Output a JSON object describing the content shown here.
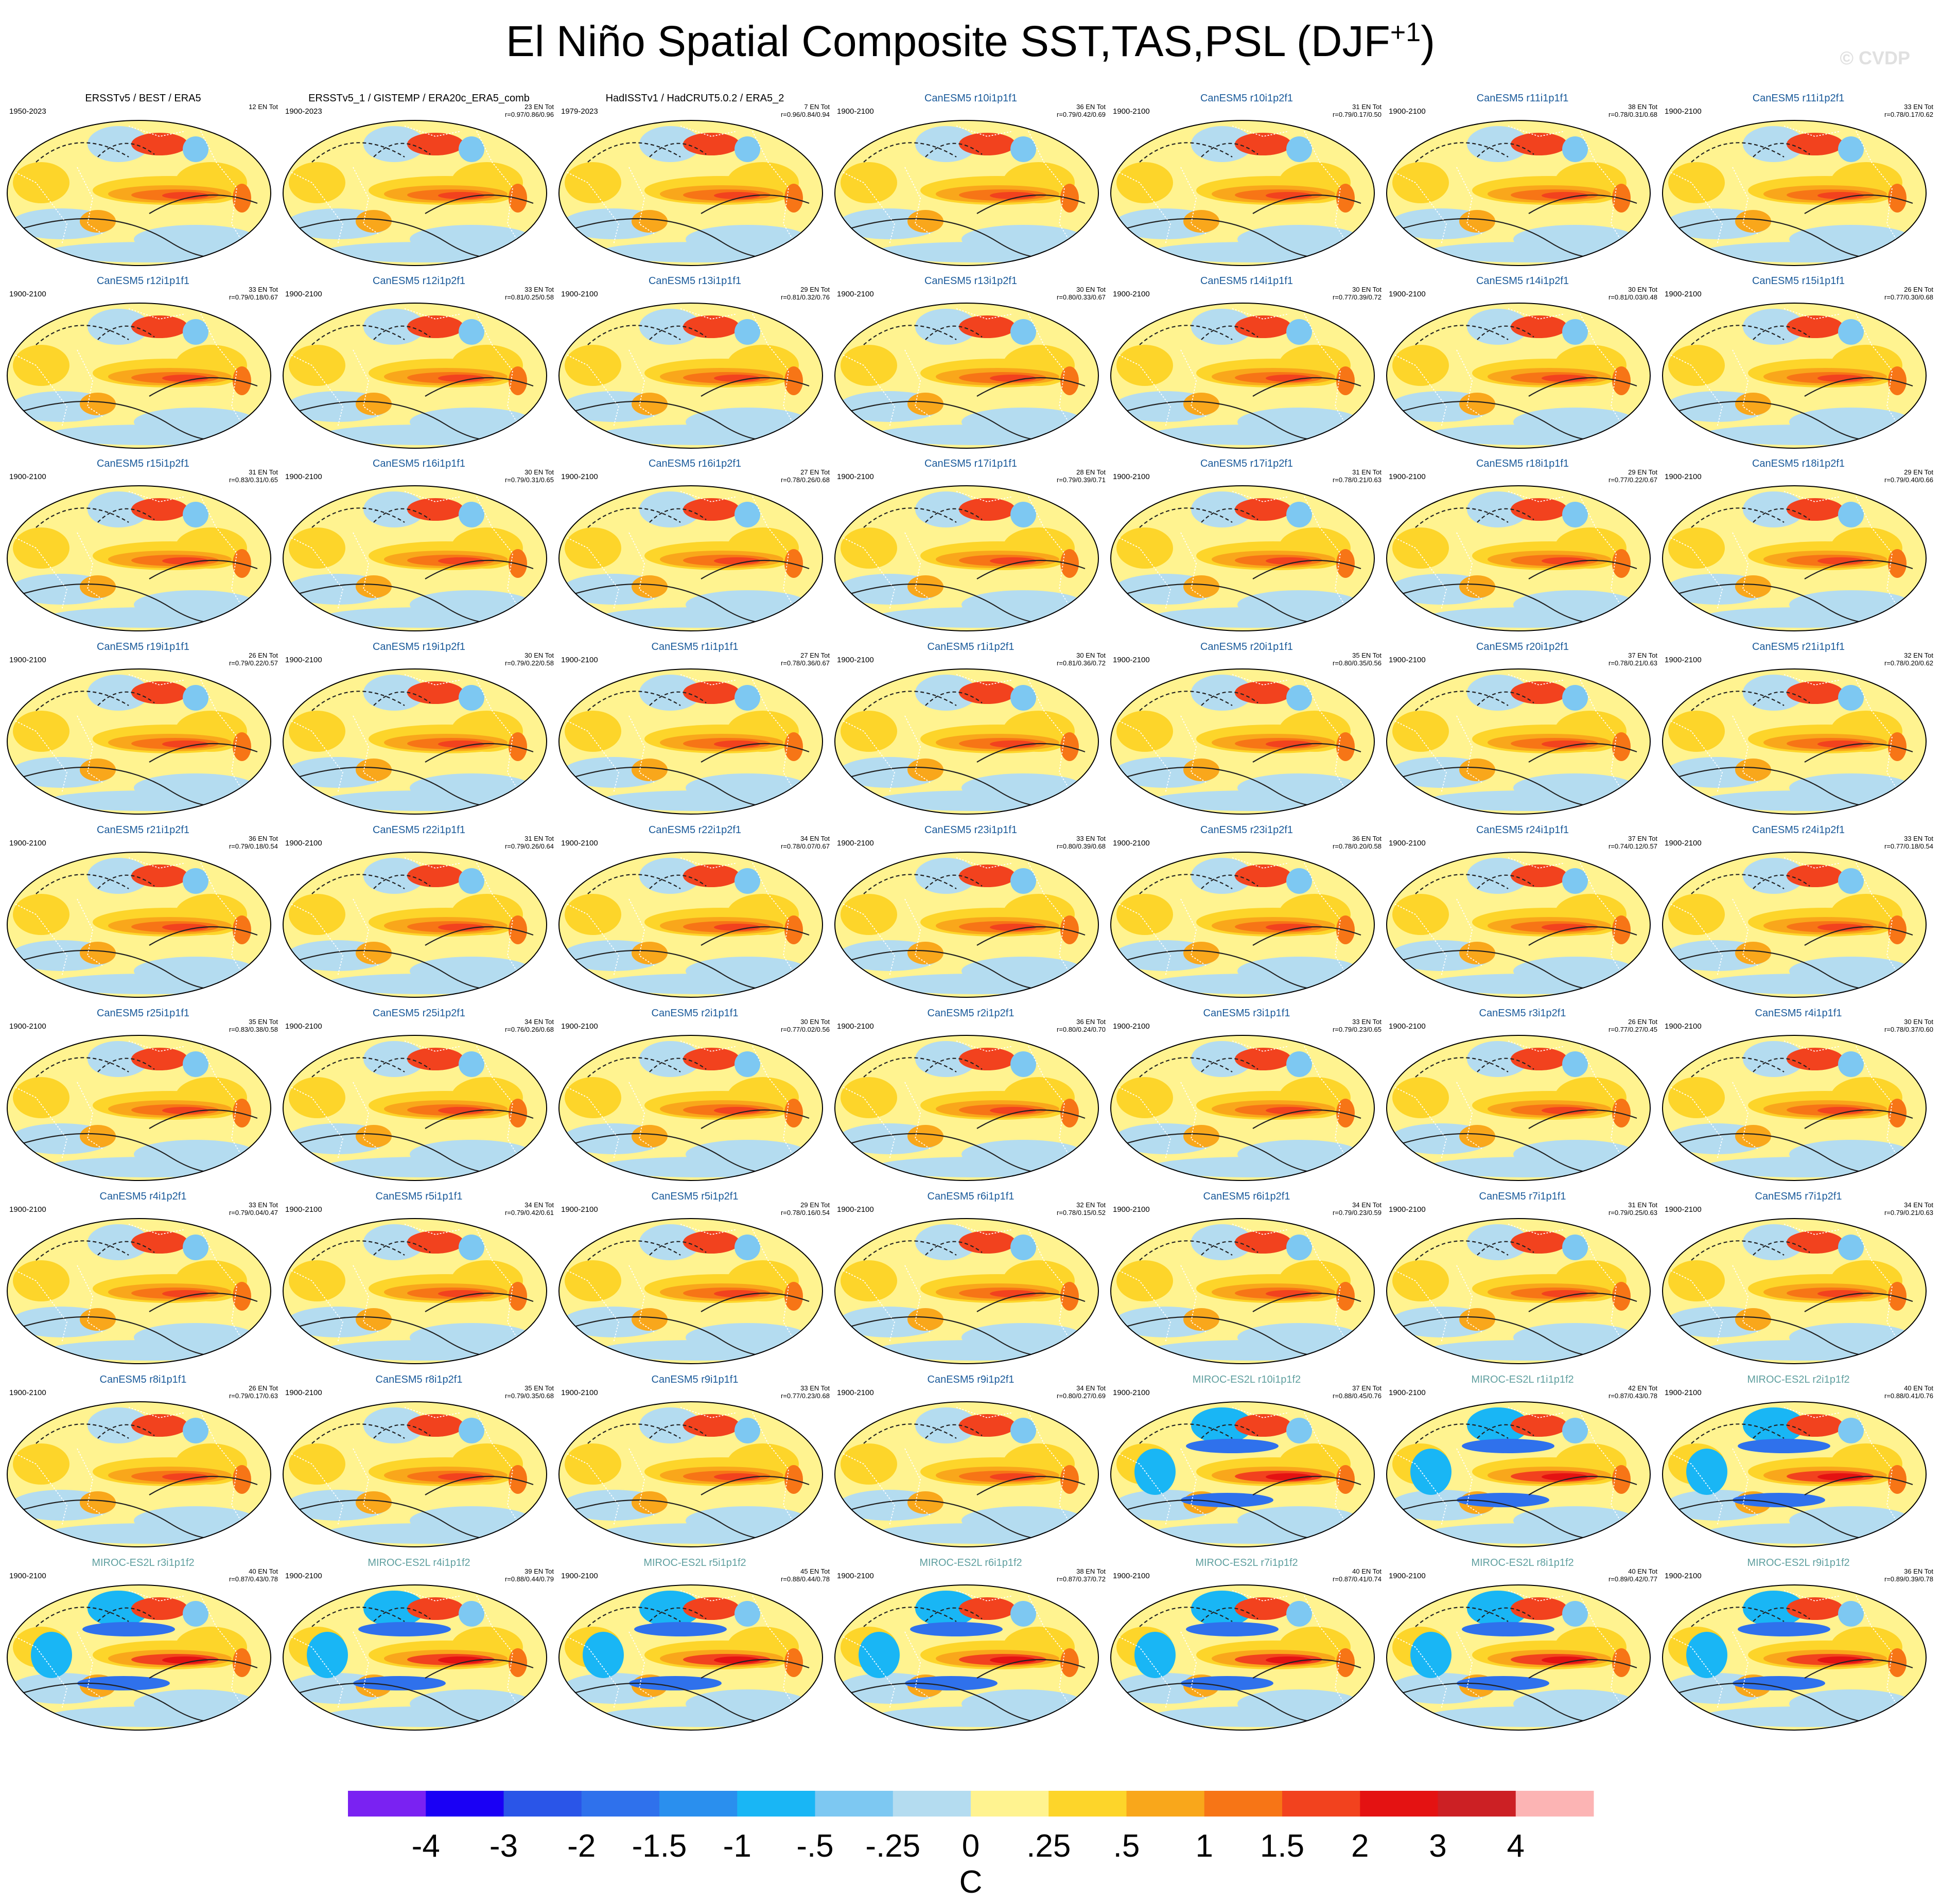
{
  "title": {
    "main": "El Niño Spatial Composite SST,TAS,PSL (DJF",
    "sup": "+1",
    "close": ")"
  },
  "watermark": "© CVDP",
  "chart_data": {
    "type": "heatmap",
    "title": "El Niño Spatial Composite SST,TAS,PSL (DJF+1)",
    "colorbar": {
      "unit": "C",
      "ticks": [
        "-4",
        "-3",
        "-2",
        "-1.5",
        "-1",
        "-.5",
        "-.25",
        "0",
        ".25",
        ".5",
        "1",
        "1.5",
        "2",
        "3",
        "4"
      ],
      "colors": [
        "#7a22f2",
        "#1a00f5",
        "#2a55e8",
        "#2f71ec",
        "#2a8fee",
        "#19b6f5",
        "#7dc8f2",
        "#b4dcf0",
        "#fff390",
        "#fdd52a",
        "#f9a71b",
        "#f77516",
        "#f2421e",
        "#e41212",
        "#cc2024",
        "#fcb4b4"
      ]
    },
    "panels": [
      {
        "title": "ERSSTv5 / BEST / ERA5",
        "period": "1950-2023",
        "ens": "12 EN Tot",
        "stats": "",
        "obs": true
      },
      {
        "title": "ERSSTv5_1 / GISTEMP / ERA20c_ERA5_comb",
        "period": "1900-2023",
        "ens": "23 EN Tot",
        "stats": "r=0.97/0.86/0.96",
        "obs": true
      },
      {
        "title": "HadISSTv1 / HadCRUT5.0.2 / ERA5_2",
        "period": "1979-2023",
        "ens": "7 EN Tot",
        "stats": "r=0.96/0.84/0.94",
        "obs": true
      },
      {
        "title": "CanESM5 r10i1p1f1",
        "period": "1900-2100",
        "ens": "36 EN Tot",
        "stats": "r=0.79/0.42/0.69"
      },
      {
        "title": "CanESM5 r10i1p2f1",
        "period": "1900-2100",
        "ens": "31 EN Tot",
        "stats": "r=0.79/0.17/0.50"
      },
      {
        "title": "CanESM5 r11i1p1f1",
        "period": "1900-2100",
        "ens": "38 EN Tot",
        "stats": "r=0.78/0.31/0.68"
      },
      {
        "title": "CanESM5 r11i1p2f1",
        "period": "1900-2100",
        "ens": "33 EN Tot",
        "stats": "r=0.78/0.17/0.62"
      },
      {
        "title": "CanESM5 r12i1p1f1",
        "period": "1900-2100",
        "ens": "33 EN Tot",
        "stats": "r=0.79/0.18/0.67"
      },
      {
        "title": "CanESM5 r12i1p2f1",
        "period": "1900-2100",
        "ens": "33 EN Tot",
        "stats": "r=0.81/0.25/0.58"
      },
      {
        "title": "CanESM5 r13i1p1f1",
        "period": "1900-2100",
        "ens": "29 EN Tot",
        "stats": "r=0.81/0.32/0.76"
      },
      {
        "title": "CanESM5 r13i1p2f1",
        "period": "1900-2100",
        "ens": "30 EN Tot",
        "stats": "r=0.80/0.33/0.67"
      },
      {
        "title": "CanESM5 r14i1p1f1",
        "period": "1900-2100",
        "ens": "30 EN Tot",
        "stats": "r=0.77/0.39/0.72"
      },
      {
        "title": "CanESM5 r14i1p2f1",
        "period": "1900-2100",
        "ens": "30 EN Tot",
        "stats": "r=0.81/0.03/0.48"
      },
      {
        "title": "CanESM5 r15i1p1f1",
        "period": "1900-2100",
        "ens": "26 EN Tot",
        "stats": "r=0.77/0.30/0.68"
      },
      {
        "title": "CanESM5 r15i1p2f1",
        "period": "1900-2100",
        "ens": "31 EN Tot",
        "stats": "r=0.83/0.31/0.65"
      },
      {
        "title": "CanESM5 r16i1p1f1",
        "period": "1900-2100",
        "ens": "30 EN Tot",
        "stats": "r=0.79/0.31/0.65"
      },
      {
        "title": "CanESM5 r16i1p2f1",
        "period": "1900-2100",
        "ens": "27 EN Tot",
        "stats": "r=0.78/0.26/0.68"
      },
      {
        "title": "CanESM5 r17i1p1f1",
        "period": "1900-2100",
        "ens": "28 EN Tot",
        "stats": "r=0.79/0.39/0.71"
      },
      {
        "title": "CanESM5 r17i1p2f1",
        "period": "1900-2100",
        "ens": "31 EN Tot",
        "stats": "r=0.78/0.21/0.63"
      },
      {
        "title": "CanESM5 r18i1p1f1",
        "period": "1900-2100",
        "ens": "29 EN Tot",
        "stats": "r=0.77/0.22/0.67"
      },
      {
        "title": "CanESM5 r18i1p2f1",
        "period": "1900-2100",
        "ens": "29 EN Tot",
        "stats": "r=0.79/0.40/0.66"
      },
      {
        "title": "CanESM5 r19i1p1f1",
        "period": "1900-2100",
        "ens": "26 EN Tot",
        "stats": "r=0.79/0.22/0.57"
      },
      {
        "title": "CanESM5 r19i1p2f1",
        "period": "1900-2100",
        "ens": "30 EN Tot",
        "stats": "r=0.79/0.22/0.58"
      },
      {
        "title": "CanESM5 r1i1p1f1",
        "period": "1900-2100",
        "ens": "27 EN Tot",
        "stats": "r=0.78/0.36/0.67"
      },
      {
        "title": "CanESM5 r1i1p2f1",
        "period": "1900-2100",
        "ens": "30 EN Tot",
        "stats": "r=0.81/0.36/0.72"
      },
      {
        "title": "CanESM5 r20i1p1f1",
        "period": "1900-2100",
        "ens": "35 EN Tot",
        "stats": "r=0.80/0.35/0.56"
      },
      {
        "title": "CanESM5 r20i1p2f1",
        "period": "1900-2100",
        "ens": "37 EN Tot",
        "stats": "r=0.78/0.21/0.63"
      },
      {
        "title": "CanESM5 r21i1p1f1",
        "period": "1900-2100",
        "ens": "32 EN Tot",
        "stats": "r=0.78/0.20/0.62"
      },
      {
        "title": "CanESM5 r21i1p2f1",
        "period": "1900-2100",
        "ens": "36 EN Tot",
        "stats": "r=0.79/0.18/0.54"
      },
      {
        "title": "CanESM5 r22i1p1f1",
        "period": "1900-2100",
        "ens": "31 EN Tot",
        "stats": "r=0.79/0.26/0.64"
      },
      {
        "title": "CanESM5 r22i1p2f1",
        "period": "1900-2100",
        "ens": "34 EN Tot",
        "stats": "r=0.78/0.07/0.67"
      },
      {
        "title": "CanESM5 r23i1p1f1",
        "period": "1900-2100",
        "ens": "33 EN Tot",
        "stats": "r=0.80/0.39/0.68"
      },
      {
        "title": "CanESM5 r23i1p2f1",
        "period": "1900-2100",
        "ens": "36 EN Tot",
        "stats": "r=0.78/0.20/0.58"
      },
      {
        "title": "CanESM5 r24i1p1f1",
        "period": "1900-2100",
        "ens": "37 EN Tot",
        "stats": "r=0.74/0.12/0.57"
      },
      {
        "title": "CanESM5 r24i1p2f1",
        "period": "1900-2100",
        "ens": "33 EN Tot",
        "stats": "r=0.77/0.18/0.54"
      },
      {
        "title": "CanESM5 r25i1p1f1",
        "period": "1900-2100",
        "ens": "35 EN Tot",
        "stats": "r=0.83/0.38/0.58"
      },
      {
        "title": "CanESM5 r25i1p2f1",
        "period": "1900-2100",
        "ens": "34 EN Tot",
        "stats": "r=0.76/0.26/0.68"
      },
      {
        "title": "CanESM5 r2i1p1f1",
        "period": "1900-2100",
        "ens": "30 EN Tot",
        "stats": "r=0.77/0.02/0.56"
      },
      {
        "title": "CanESM5 r2i1p2f1",
        "period": "1900-2100",
        "ens": "36 EN Tot",
        "stats": "r=0.80/0.24/0.70"
      },
      {
        "title": "CanESM5 r3i1p1f1",
        "period": "1900-2100",
        "ens": "33 EN Tot",
        "stats": "r=0.79/0.23/0.65"
      },
      {
        "title": "CanESM5 r3i1p2f1",
        "period": "1900-2100",
        "ens": "26 EN Tot",
        "stats": "r=0.77/0.27/0.45"
      },
      {
        "title": "CanESM5 r4i1p1f1",
        "period": "1900-2100",
        "ens": "30 EN Tot",
        "stats": "r=0.78/0.37/0.60"
      },
      {
        "title": "CanESM5 r4i1p2f1",
        "period": "1900-2100",
        "ens": "33 EN Tot",
        "stats": "r=0.79/0.04/0.47"
      },
      {
        "title": "CanESM5 r5i1p1f1",
        "period": "1900-2100",
        "ens": "34 EN Tot",
        "stats": "r=0.79/0.42/0.61"
      },
      {
        "title": "CanESM5 r5i1p2f1",
        "period": "1900-2100",
        "ens": "29 EN Tot",
        "stats": "r=0.78/0.16/0.54"
      },
      {
        "title": "CanESM5 r6i1p1f1",
        "period": "1900-2100",
        "ens": "32 EN Tot",
        "stats": "r=0.78/0.15/0.52"
      },
      {
        "title": "CanESM5 r6i1p2f1",
        "period": "1900-2100",
        "ens": "34 EN Tot",
        "stats": "r=0.79/0.23/0.59"
      },
      {
        "title": "CanESM5 r7i1p1f1",
        "period": "1900-2100",
        "ens": "31 EN Tot",
        "stats": "r=0.79/0.25/0.63"
      },
      {
        "title": "CanESM5 r7i1p2f1",
        "period": "1900-2100",
        "ens": "34 EN Tot",
        "stats": "r=0.79/0.21/0.63"
      },
      {
        "title": "CanESM5 r8i1p1f1",
        "period": "1900-2100",
        "ens": "26 EN Tot",
        "stats": "r=0.79/0.17/0.63"
      },
      {
        "title": "CanESM5 r8i1p2f1",
        "period": "1900-2100",
        "ens": "35 EN Tot",
        "stats": "r=0.79/0.35/0.68"
      },
      {
        "title": "CanESM5 r9i1p1f1",
        "period": "1900-2100",
        "ens": "33 EN Tot",
        "stats": "r=0.77/0.23/0.68"
      },
      {
        "title": "CanESM5 r9i1p2f1",
        "period": "1900-2100",
        "ens": "34 EN Tot",
        "stats": "r=0.80/0.27/0.69"
      },
      {
        "title": "MIROC-ES2L r10i1p1f2",
        "period": "1900-2100",
        "ens": "37 EN Tot",
        "stats": "r=0.88/0.45/0.76",
        "miroc": true
      },
      {
        "title": "MIROC-ES2L r1i1p1f2",
        "period": "1900-2100",
        "ens": "42 EN Tot",
        "stats": "r=0.87/0.43/0.78",
        "miroc": true
      },
      {
        "title": "MIROC-ES2L r2i1p1f2",
        "period": "1900-2100",
        "ens": "40 EN Tot",
        "stats": "r=0.88/0.41/0.76",
        "miroc": true
      },
      {
        "title": "MIROC-ES2L r3i1p1f2",
        "period": "1900-2100",
        "ens": "40 EN Tot",
        "stats": "r=0.87/0.43/0.78",
        "miroc": true
      },
      {
        "title": "MIROC-ES2L r4i1p1f2",
        "period": "1900-2100",
        "ens": "39 EN Tot",
        "stats": "r=0.88/0.44/0.79",
        "miroc": true
      },
      {
        "title": "MIROC-ES2L r5i1p1f2",
        "period": "1900-2100",
        "ens": "45 EN Tot",
        "stats": "r=0.88/0.44/0.78",
        "miroc": true
      },
      {
        "title": "MIROC-ES2L r6i1p1f2",
        "period": "1900-2100",
        "ens": "38 EN Tot",
        "stats": "r=0.87/0.37/0.72",
        "miroc": true
      },
      {
        "title": "MIROC-ES2L r7i1p1f2",
        "period": "1900-2100",
        "ens": "40 EN Tot",
        "stats": "r=0.87/0.41/0.74",
        "miroc": true
      },
      {
        "title": "MIROC-ES2L r8i1p1f2",
        "period": "1900-2100",
        "ens": "40 EN Tot",
        "stats": "r=0.89/0.42/0.77",
        "miroc": true
      },
      {
        "title": "MIROC-ES2L r9i1p1f2",
        "period": "1900-2100",
        "ens": "36 EN Tot",
        "stats": "r=0.89/0.39/0.78",
        "miroc": true
      }
    ]
  },
  "colors": {
    "title_obs": "#000000",
    "title_model": "#1a5a9a",
    "title_miroc": "#5f9f9f"
  }
}
